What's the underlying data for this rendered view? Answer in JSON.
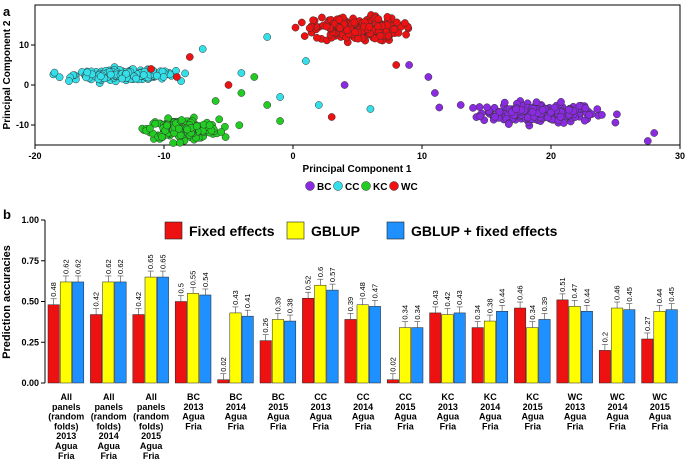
{
  "figure": {
    "panel_a_label": "a",
    "panel_b_label": "b"
  },
  "colors": {
    "BC": "#8a2be2",
    "CC": "#33e0ea",
    "KC": "#22cc22",
    "WC": "#ee1111",
    "fixed": "#ee1111",
    "gblup": "#ffff00",
    "gblup_fixed": "#1e90ff"
  },
  "chart_data": [
    {
      "type": "scatter",
      "title": "",
      "xlabel": "Principal Component 1",
      "ylabel": "Principal Component 2",
      "xlim": [
        -20,
        30
      ],
      "ylim": [
        -15,
        20
      ],
      "xticks": [
        "-20",
        "-10",
        "0",
        "10",
        "20",
        "30"
      ],
      "yticks": [
        "-10",
        "0",
        "10"
      ],
      "legend": [
        "BC",
        "CC",
        "KC",
        "WC"
      ],
      "clusters": [
        {
          "name": "BC",
          "center": [
            19,
            -7
          ],
          "spread": [
            4,
            2
          ],
          "n": 230
        },
        {
          "name": "CC",
          "center": [
            -13,
            2.5
          ],
          "spread": [
            3.5,
            1
          ],
          "n": 250
        },
        {
          "name": "KC",
          "center": [
            -8.5,
            -11
          ],
          "spread": [
            2.5,
            2
          ],
          "n": 200
        },
        {
          "name": "WC",
          "center": [
            5,
            14
          ],
          "spread": [
            3,
            2.5
          ],
          "n": 220
        }
      ],
      "outliers": [
        {
          "name": "BC",
          "x": 27.5,
          "y": -14
        },
        {
          "name": "BC",
          "x": 28,
          "y": -12
        },
        {
          "name": "BC",
          "x": 10.5,
          "y": 2
        },
        {
          "name": "BC",
          "x": 11,
          "y": -2
        },
        {
          "name": "BC",
          "x": 9,
          "y": 5
        },
        {
          "name": "BC",
          "x": 13,
          "y": -5
        },
        {
          "name": "BC",
          "x": 4,
          "y": 0
        },
        {
          "name": "CC",
          "x": -2,
          "y": 12
        },
        {
          "name": "CC",
          "x": -7,
          "y": 9
        },
        {
          "name": "CC",
          "x": -4,
          "y": 3
        },
        {
          "name": "CC",
          "x": -1,
          "y": -3
        },
        {
          "name": "CC",
          "x": 2,
          "y": -5
        },
        {
          "name": "CC",
          "x": 6,
          "y": -6
        },
        {
          "name": "CC",
          "x": 1,
          "y": 6
        },
        {
          "name": "KC",
          "x": -4,
          "y": -2
        },
        {
          "name": "KC",
          "x": -2,
          "y": -5
        },
        {
          "name": "KC",
          "x": -6,
          "y": -4
        },
        {
          "name": "KC",
          "x": -1,
          "y": -9
        },
        {
          "name": "KC",
          "x": -3,
          "y": 2
        },
        {
          "name": "WC",
          "x": -9,
          "y": 2
        },
        {
          "name": "WC",
          "x": -11,
          "y": 4
        },
        {
          "name": "WC",
          "x": 3,
          "y": -8
        },
        {
          "name": "WC",
          "x": 8,
          "y": 5
        },
        {
          "name": "WC",
          "x": -5,
          "y": 0
        },
        {
          "name": "WC",
          "x": -8,
          "y": 7
        }
      ]
    },
    {
      "type": "bar",
      "ylabel": "Prediction accuracies",
      "ylim": [
        0,
        1
      ],
      "yticks": [
        "0.00",
        "0.25",
        "0.50",
        "0.75",
        "1.00"
      ],
      "categories": [
        [
          "All",
          "panels",
          "(random",
          "folds)",
          "2013",
          "Agua",
          "Fria"
        ],
        [
          "All",
          "panels",
          "(random",
          "folds)",
          "2014",
          "Agua",
          "Fria"
        ],
        [
          "All",
          "panels",
          "(random",
          "folds)",
          "2015",
          "Agua",
          "Fria"
        ],
        [
          "BC",
          "2013",
          "Agua",
          "Fria"
        ],
        [
          "BC",
          "2014",
          "Agua",
          "Fria"
        ],
        [
          "BC",
          "2015",
          "Agua",
          "Fria"
        ],
        [
          "CC",
          "2013",
          "Agua",
          "Fria"
        ],
        [
          "CC",
          "2014",
          "Agua",
          "Fria"
        ],
        [
          "CC",
          "2015",
          "Agua",
          "Fria"
        ],
        [
          "KC",
          "2013",
          "Agua",
          "Fria"
        ],
        [
          "KC",
          "2014",
          "Agua",
          "Fria"
        ],
        [
          "KC",
          "2015",
          "Agua",
          "Fria"
        ],
        [
          "WC",
          "2013",
          "Agua",
          "Fria"
        ],
        [
          "WC",
          "2014",
          "Agua",
          "Fria"
        ],
        [
          "WC",
          "2015",
          "Agua",
          "Fria"
        ]
      ],
      "series": [
        {
          "name": "Fixed effects",
          "color_key": "fixed",
          "values": [
            0.48,
            0.42,
            0.42,
            0.5,
            0.02,
            0.26,
            0.52,
            0.39,
            0.02,
            0.43,
            0.34,
            0.46,
            0.51,
            0.2,
            0.27
          ],
          "labels": [
            "0.48",
            "0.42",
            "0.42",
            "0.5",
            "0.02",
            "0.26",
            "0.52",
            "0.39",
            "0.02",
            "0.43",
            "0.34",
            "0.46",
            "0.51",
            "0.2",
            "0.27"
          ]
        },
        {
          "name": "GBLUP",
          "color_key": "gblup",
          "values": [
            0.62,
            0.62,
            0.65,
            0.55,
            0.43,
            0.39,
            0.6,
            0.48,
            0.34,
            0.42,
            0.38,
            0.34,
            0.47,
            0.46,
            0.44
          ],
          "labels": [
            "0.62",
            "0.62",
            "0.65",
            "0.55",
            "0.43",
            "0.39",
            "0.6",
            "0.48",
            "0.34",
            "0.42",
            "0.38",
            "0.34",
            "0.47",
            "0.46",
            "0.44"
          ]
        },
        {
          "name": "GBLUP + fixed effects",
          "color_key": "gblup_fixed",
          "values": [
            0.62,
            0.62,
            0.65,
            0.54,
            0.41,
            0.38,
            0.57,
            0.47,
            0.34,
            0.43,
            0.44,
            0.39,
            0.44,
            0.45,
            0.45
          ],
          "labels": [
            "0.62",
            "0.62",
            "0.65",
            "0.54",
            "0.41",
            "0.38",
            "0.57",
            "0.47",
            "0.34",
            "0.43",
            "0.44",
            "0.39",
            "0.44",
            "0.45",
            "0.45"
          ]
        }
      ]
    }
  ]
}
